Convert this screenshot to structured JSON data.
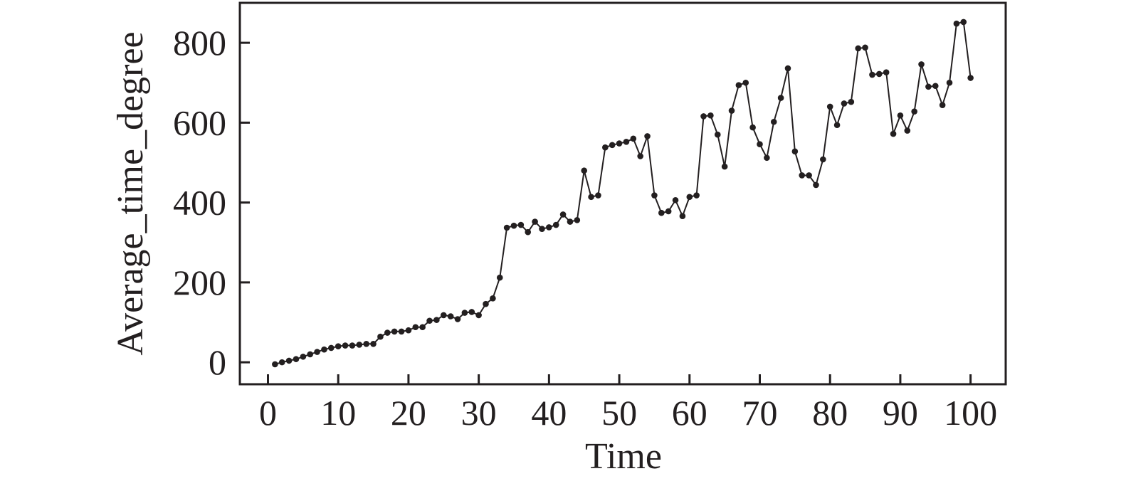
{
  "chart_data": {
    "type": "line",
    "title": "",
    "xlabel": "Time",
    "ylabel": "Average_time_degree",
    "xlim": [
      -4,
      105
    ],
    "ylim": [
      -55,
      900
    ],
    "xticks": [
      0,
      10,
      20,
      30,
      40,
      50,
      60,
      70,
      80,
      90,
      100
    ],
    "yticks": [
      0,
      200,
      400,
      600,
      800
    ],
    "grid": false,
    "legend": "none",
    "colors": {
      "line": "#231f20",
      "marker": "#231f20",
      "axis": "#231f20"
    },
    "series": [
      {
        "x": [
          1,
          2,
          3,
          4,
          5,
          6,
          7,
          8,
          9,
          10,
          11,
          12,
          13,
          14,
          15,
          16,
          17,
          18,
          19,
          20,
          21,
          22,
          23,
          24,
          25,
          26,
          27,
          28,
          29,
          30,
          31,
          32,
          33,
          34,
          35,
          36,
          37,
          38,
          39,
          40,
          41,
          42,
          43,
          44,
          45,
          46,
          47,
          48,
          49,
          50,
          51,
          52,
          53,
          54,
          55,
          56,
          57,
          58,
          59,
          60,
          61,
          62,
          63,
          64,
          65,
          66,
          67,
          68,
          69,
          70,
          71,
          72,
          73,
          74,
          75,
          76,
          77,
          78,
          79,
          80,
          81,
          82,
          83,
          84,
          85,
          86,
          87,
          88,
          89,
          90,
          91,
          92,
          93,
          94,
          95,
          96,
          97,
          98,
          99,
          100
        ],
        "values": [
          -5,
          0,
          4,
          8,
          14,
          20,
          26,
          32,
          36,
          40,
          42,
          42,
          44,
          46,
          46,
          64,
          74,
          77,
          77,
          80,
          88,
          88,
          104,
          106,
          118,
          115,
          108,
          124,
          126,
          118,
          146,
          160,
          212,
          337,
          342,
          344,
          326,
          352,
          334,
          338,
          344,
          370,
          352,
          356,
          480,
          414,
          418,
          538,
          544,
          548,
          552,
          560,
          516,
          566,
          418,
          374,
          378,
          406,
          366,
          414,
          418,
          616,
          618,
          570,
          490,
          630,
          694,
          700,
          588,
          546,
          512,
          602,
          662,
          736,
          528,
          468,
          468,
          444,
          508,
          640,
          594,
          648,
          652,
          786,
          788,
          720,
          722,
          726,
          572,
          618,
          580,
          628,
          746,
          690,
          692,
          644,
          700,
          848,
          852,
          712
        ]
      }
    ]
  }
}
